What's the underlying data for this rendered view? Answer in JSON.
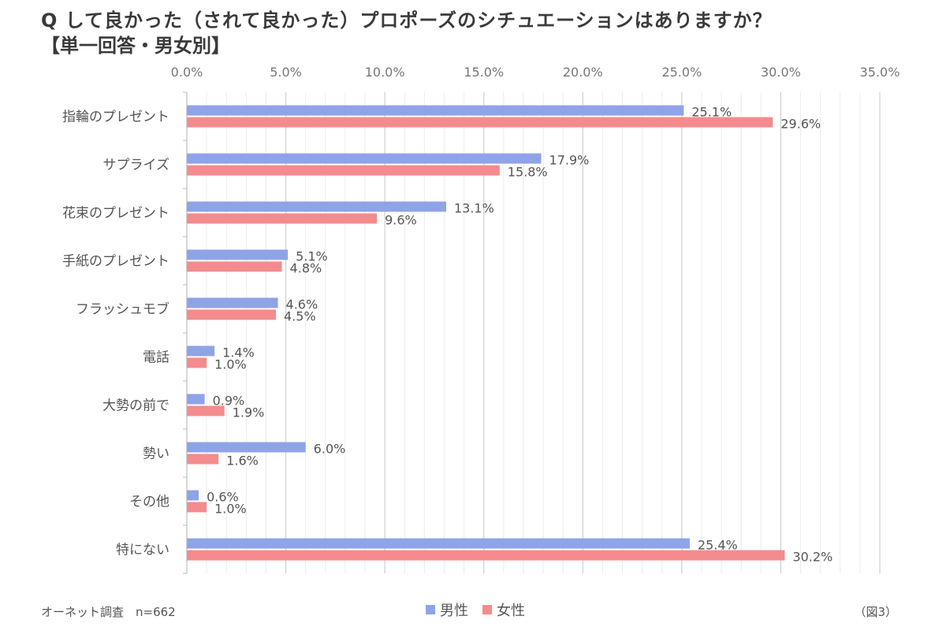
{
  "title": "Q して良かった（されて良かった）プロポーズのシチュエーションはありますか？",
  "subtitle": "【単一回答・男女別】",
  "source": "オーネット調査　n=662",
  "figure_label": "（図3）",
  "colors": {
    "male": "#8fa3e8",
    "female": "#f48b8e"
  },
  "chart_data": {
    "type": "bar",
    "orientation": "horizontal",
    "title": "Q して良かった（されて良かった）プロポーズのシチュエーションはありますか？",
    "subtitle": "【単一回答・男女別】",
    "categories": [
      "指輪のプレゼント",
      "サプライズ",
      "花束のプレゼント",
      "手紙のプレゼント",
      "フラッシュモブ",
      "電話",
      "大勢の前で",
      "勢い",
      "その他",
      "特にない"
    ],
    "series": [
      {
        "name": "男性",
        "values": [
          25.1,
          17.9,
          13.1,
          5.1,
          4.6,
          1.4,
          0.9,
          6.0,
          0.6,
          25.4
        ],
        "labels": [
          "25.1%",
          "17.9%",
          "13.1%",
          "5.1%",
          "4.6%",
          "1.4%",
          "0.9%",
          "6.0%",
          "0.6%",
          "25.4%"
        ]
      },
      {
        "name": "女性",
        "values": [
          29.6,
          15.8,
          9.6,
          4.8,
          4.5,
          1.0,
          1.9,
          1.6,
          1.0,
          30.2
        ],
        "labels": [
          "29.6%",
          "15.8%",
          "9.6%",
          "4.8%",
          "4.5%",
          "1.0%",
          "1.9%",
          "1.6%",
          "1.0%",
          "30.2%"
        ]
      }
    ],
    "xlim": [
      0,
      35
    ],
    "xticks": [
      "0.0%",
      "5.0%",
      "10.0%",
      "15.0%",
      "20.0%",
      "25.0%",
      "30.0%",
      "35.0%"
    ],
    "xaxis_position": "top",
    "grid": true,
    "legend": "bottom"
  }
}
